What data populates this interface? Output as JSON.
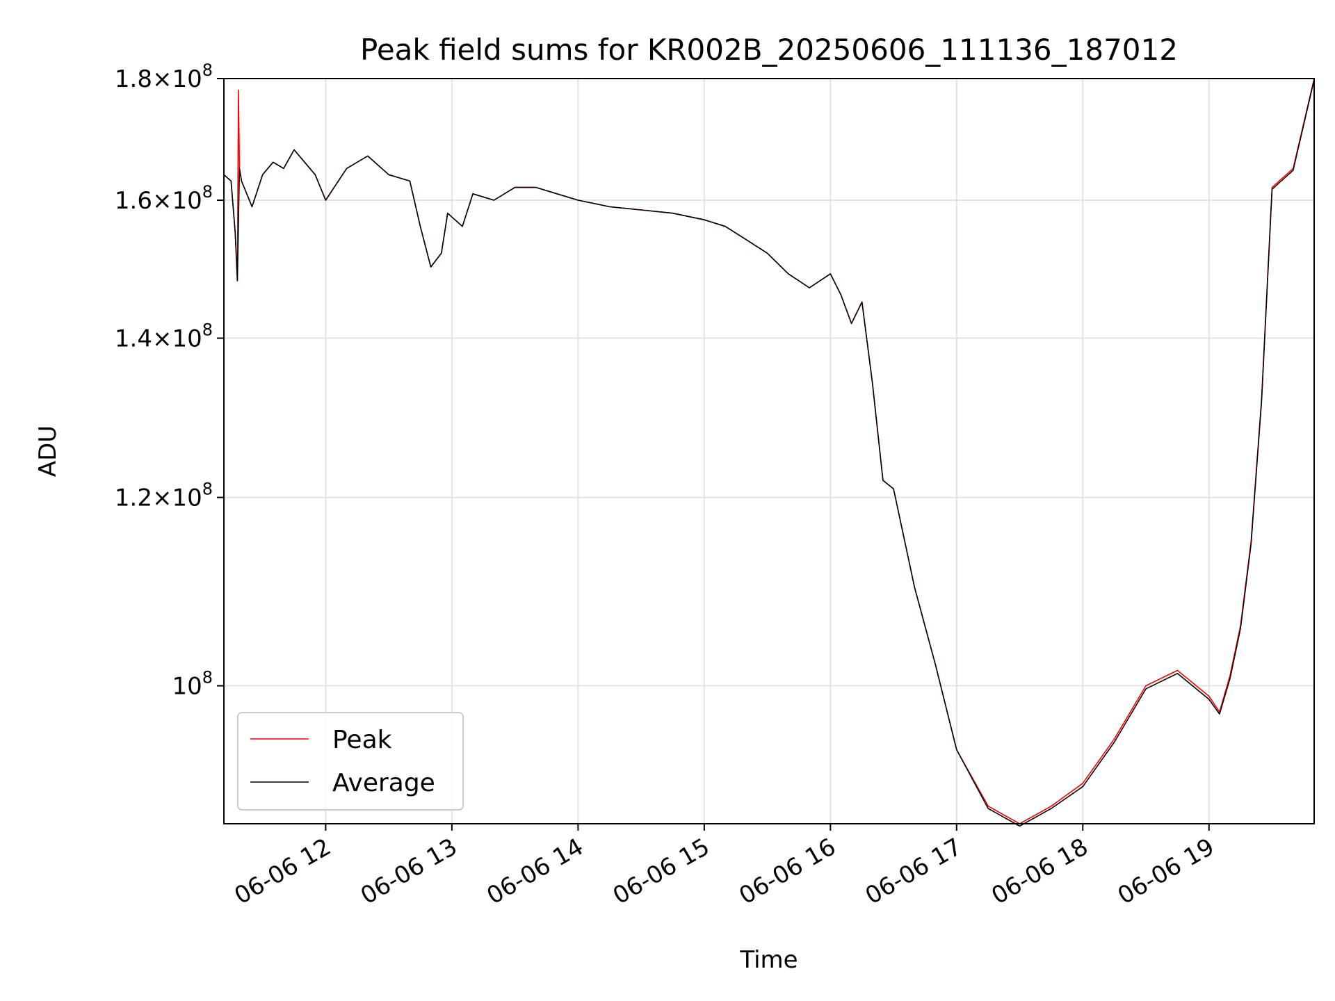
{
  "chart_data": {
    "type": "line",
    "title": "Peak field sums for KR002B_20250606_111136_187012",
    "xlabel": "Time",
    "ylabel": "ADU",
    "y_scale": "log",
    "xlim": [
      "2025-06-06 11:11:36",
      "2025-06-06 19:50:00"
    ],
    "ylim": [
      87500000,
      180000000
    ],
    "x_ticks": [
      "2025-06-06 12:00",
      "2025-06-06 13:00",
      "2025-06-06 14:00",
      "2025-06-06 15:00",
      "2025-06-06 16:00",
      "2025-06-06 17:00",
      "2025-06-06 18:00",
      "2025-06-06 19:00"
    ],
    "x_tick_labels": [
      "06-06 12",
      "06-06 13",
      "06-06 14",
      "06-06 15",
      "06-06 16",
      "06-06 17",
      "06-06 18",
      "06-06 19"
    ],
    "y_ticks": [
      100000000,
      120000000,
      140000000,
      160000000,
      180000000
    ],
    "y_tick_mantissas": [
      "",
      "1.2",
      "1.4",
      "1.6",
      "1.8"
    ],
    "y_tick_exponent": "8",
    "grid": true,
    "legend_position": "lower-left",
    "series": [
      {
        "name": "Peak",
        "color": "#ff0000",
        "x": [
          "2025-06-06 11:11:36",
          "2025-06-06 11:15:00",
          "2025-06-06 11:17:00",
          "2025-06-06 11:18:00",
          "2025-06-06 11:18:30",
          "2025-06-06 11:19:00",
          "2025-06-06 11:19:30",
          "2025-06-06 11:20:00",
          "2025-06-06 11:25:00",
          "2025-06-06 11:30:00",
          "2025-06-06 11:35:00",
          "2025-06-06 11:40:00",
          "2025-06-06 11:45:00",
          "2025-06-06 11:50:00",
          "2025-06-06 11:55:00",
          "2025-06-06 12:00:00",
          "2025-06-06 12:10:00",
          "2025-06-06 12:20:00",
          "2025-06-06 12:30:00",
          "2025-06-06 12:40:00",
          "2025-06-06 12:45:00",
          "2025-06-06 12:50:00",
          "2025-06-06 12:55:00",
          "2025-06-06 12:58:00",
          "2025-06-06 13:05:00",
          "2025-06-06 13:10:00",
          "2025-06-06 13:20:00",
          "2025-06-06 13:30:00",
          "2025-06-06 13:40:00",
          "2025-06-06 13:50:00",
          "2025-06-06 14:00:00",
          "2025-06-06 14:15:00",
          "2025-06-06 14:30:00",
          "2025-06-06 14:45:00",
          "2025-06-06 15:00:00",
          "2025-06-06 15:10:00",
          "2025-06-06 15:20:00",
          "2025-06-06 15:30:00",
          "2025-06-06 15:40:00",
          "2025-06-06 15:50:00",
          "2025-06-06 16:00:00",
          "2025-06-06 16:05:00",
          "2025-06-06 16:10:00",
          "2025-06-06 16:15:00",
          "2025-06-06 16:20:00",
          "2025-06-06 16:25:00",
          "2025-06-06 16:30:00",
          "2025-06-06 16:40:00",
          "2025-06-06 16:50:00",
          "2025-06-06 17:00:00",
          "2025-06-06 17:15:00",
          "2025-06-06 17:30:00",
          "2025-06-06 17:45:00",
          "2025-06-06 18:00:00",
          "2025-06-06 18:15:00",
          "2025-06-06 18:30:00",
          "2025-06-06 18:45:00",
          "2025-06-06 19:00:00",
          "2025-06-06 19:05:00",
          "2025-06-06 19:10:00",
          "2025-06-06 19:15:00",
          "2025-06-06 19:20:00",
          "2025-06-06 19:25:00",
          "2025-06-06 19:30:00",
          "2025-06-06 19:40:00",
          "2025-06-06 19:50:00"
        ],
        "y": [
          164000000,
          163000000,
          155000000,
          148000000,
          178000000,
          165000000,
          164000000,
          163000000,
          159000000,
          164000000,
          166000000,
          165000000,
          168000000,
          166000000,
          164000000,
          160000000,
          165000000,
          167000000,
          164000000,
          163000000,
          156000000,
          150000000,
          152000000,
          158000000,
          156000000,
          161000000,
          160000000,
          162000000,
          162000000,
          161000000,
          160000000,
          159000000,
          158500000,
          158000000,
          157000000,
          156000000,
          154000000,
          152000000,
          149000000,
          147000000,
          149000000,
          146000000,
          142000000,
          145000000,
          134000000,
          122000000,
          121000000,
          110000000,
          102000000,
          94000000,
          89000000,
          87500000,
          89000000,
          91000000,
          95000000,
          100000000,
          101500000,
          99000000,
          97500000,
          101000000,
          106000000,
          115000000,
          132000000,
          162000000,
          165000000,
          180000000
        ]
      },
      {
        "name": "Average",
        "color": "#000000",
        "x": [
          "2025-06-06 11:11:36",
          "2025-06-06 11:15:00",
          "2025-06-06 11:17:00",
          "2025-06-06 11:18:00",
          "2025-06-06 11:19:00",
          "2025-06-06 11:20:00",
          "2025-06-06 11:25:00",
          "2025-06-06 11:30:00",
          "2025-06-06 11:35:00",
          "2025-06-06 11:40:00",
          "2025-06-06 11:45:00",
          "2025-06-06 11:50:00",
          "2025-06-06 11:55:00",
          "2025-06-06 12:00:00",
          "2025-06-06 12:10:00",
          "2025-06-06 12:20:00",
          "2025-06-06 12:30:00",
          "2025-06-06 12:40:00",
          "2025-06-06 12:45:00",
          "2025-06-06 12:50:00",
          "2025-06-06 12:55:00",
          "2025-06-06 12:58:00",
          "2025-06-06 13:05:00",
          "2025-06-06 13:10:00",
          "2025-06-06 13:20:00",
          "2025-06-06 13:30:00",
          "2025-06-06 13:40:00",
          "2025-06-06 13:50:00",
          "2025-06-06 14:00:00",
          "2025-06-06 14:15:00",
          "2025-06-06 14:30:00",
          "2025-06-06 14:45:00",
          "2025-06-06 15:00:00",
          "2025-06-06 15:10:00",
          "2025-06-06 15:20:00",
          "2025-06-06 15:30:00",
          "2025-06-06 15:40:00",
          "2025-06-06 15:50:00",
          "2025-06-06 16:00:00",
          "2025-06-06 16:05:00",
          "2025-06-06 16:10:00",
          "2025-06-06 16:15:00",
          "2025-06-06 16:20:00",
          "2025-06-06 16:25:00",
          "2025-06-06 16:30:00",
          "2025-06-06 16:40:00",
          "2025-06-06 16:50:00",
          "2025-06-06 17:00:00",
          "2025-06-06 17:15:00",
          "2025-06-06 17:30:00",
          "2025-06-06 17:45:00",
          "2025-06-06 18:00:00",
          "2025-06-06 18:15:00",
          "2025-06-06 18:30:00",
          "2025-06-06 18:45:00",
          "2025-06-06 19:00:00",
          "2025-06-06 19:05:00",
          "2025-06-06 19:10:00",
          "2025-06-06 19:15:00",
          "2025-06-06 19:20:00",
          "2025-06-06 19:25:00",
          "2025-06-06 19:30:00",
          "2025-06-06 19:40:00",
          "2025-06-06 19:50:00"
        ],
        "y": [
          164000000,
          163000000,
          155000000,
          148000000,
          165000000,
          163000000,
          159000000,
          164000000,
          166000000,
          165000000,
          168000000,
          166000000,
          164000000,
          160000000,
          165000000,
          167000000,
          164000000,
          163000000,
          156000000,
          150000000,
          152000000,
          158000000,
          156000000,
          161000000,
          160000000,
          162000000,
          162000000,
          161000000,
          160000000,
          159000000,
          158500000,
          158000000,
          157000000,
          156000000,
          154000000,
          152000000,
          149000000,
          147000000,
          149000000,
          146000000,
          142000000,
          145000000,
          134000000,
          122000000,
          121000000,
          110000000,
          102000000,
          94000000,
          88800000,
          87300000,
          88800000,
          90700000,
          94700000,
          99700000,
          101200000,
          98700000,
          97300000,
          100700000,
          105700000,
          114700000,
          131700000,
          161700000,
          164700000,
          179800000
        ]
      }
    ]
  }
}
